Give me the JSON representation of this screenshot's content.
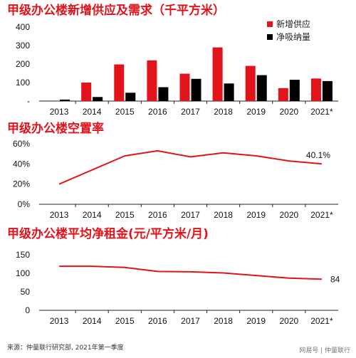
{
  "chart_data": [
    {
      "type": "bar",
      "title": "甲级办公楼新增供应及需求（千平方米）",
      "categories": [
        "2013",
        "2014",
        "2015",
        "2016",
        "2017",
        "2018",
        "2019",
        "2020",
        "2021*"
      ],
      "series": [
        {
          "name": "新增供应",
          "color": "#e1141b",
          "values": [
            0,
            100,
            198,
            220,
            148,
            290,
            190,
            70,
            122
          ]
        },
        {
          "name": "净吸纳量",
          "color": "#000000",
          "values": [
            8,
            22,
            45,
            75,
            120,
            95,
            140,
            115,
            108
          ]
        }
      ],
      "yticks": [
        "-",
        "100",
        "200",
        "300",
        "400"
      ],
      "ylim": [
        0,
        400
      ],
      "legend": "top-right"
    },
    {
      "type": "line",
      "title": "甲级办公楼空置率",
      "categories": [
        "2013",
        "2014",
        "2015",
        "2016",
        "2017",
        "2018",
        "2019",
        "2020",
        "2021*"
      ],
      "series": [
        {
          "name": "",
          "color": "#e1141b",
          "values": [
            20,
            34,
            48,
            53,
            47,
            51,
            48,
            43,
            40.1
          ]
        }
      ],
      "yticks": [
        "0%",
        "20%",
        "40%",
        "60%"
      ],
      "ylim": [
        0,
        60
      ],
      "annotation": "40.1%"
    },
    {
      "type": "line",
      "title": "甲级办公楼平均净租金(元/平方米/月)",
      "categories": [
        "2013",
        "2014",
        "2015",
        "2016",
        "2017",
        "2018",
        "2019",
        "2020",
        "2021*"
      ],
      "series": [
        {
          "name": "",
          "color": "#e1141b",
          "values": [
            119,
            119,
            116,
            105,
            104,
            101,
            94,
            87,
            84
          ]
        }
      ],
      "yticks": [
        "0",
        "50",
        "100",
        "150"
      ],
      "ylim": [
        0,
        150
      ],
      "annotation": "84"
    }
  ],
  "source": "来源：仲量联行研究部, 2021年第一季度",
  "watermark": "网易号 | 仲量联行"
}
